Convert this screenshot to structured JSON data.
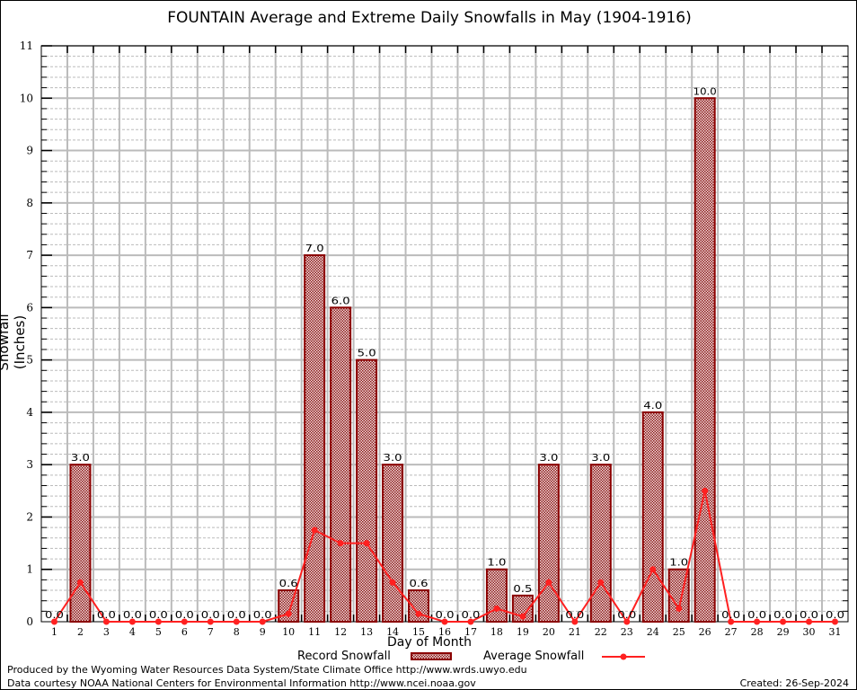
{
  "chart_data": {
    "type": "bar",
    "title": "FOUNTAIN Average and Extreme Daily Snowfalls in May (1904-1916)",
    "xlabel": "Day of Month",
    "ylabel": "Snowfall (Inches)",
    "ylim": [
      0,
      11
    ],
    "yticks": [
      "0",
      "1",
      "2",
      "3",
      "4",
      "5",
      "6",
      "7",
      "8",
      "9",
      "10",
      "11"
    ],
    "categories": [
      "1",
      "2",
      "3",
      "4",
      "5",
      "6",
      "7",
      "8",
      "9",
      "10",
      "11",
      "12",
      "13",
      "14",
      "15",
      "16",
      "17",
      "18",
      "19",
      "20",
      "21",
      "22",
      "23",
      "24",
      "25",
      "26",
      "27",
      "28",
      "29",
      "30",
      "31"
    ],
    "series": [
      {
        "name": "Record Snowfall",
        "type": "bar",
        "color": "#8b0000",
        "values": [
          0.0,
          3.0,
          0.0,
          0.0,
          0.0,
          0.0,
          0.0,
          0.0,
          0.0,
          0.6,
          7.0,
          6.0,
          5.0,
          3.0,
          0.6,
          0.0,
          0.0,
          1.0,
          0.5,
          3.0,
          0.0,
          3.0,
          0.0,
          4.0,
          1.0,
          10.0,
          0.0,
          0.0,
          0.0,
          0.0,
          0.0
        ],
        "labels": [
          "0.0",
          "3.0",
          "0.0",
          "0.0",
          "0.0",
          "0.0",
          "0.0",
          "0.0",
          "0.0",
          "0.6",
          "7.0",
          "6.0",
          "5.0",
          "3.0",
          "0.6",
          "0.0",
          "0.0",
          "1.0",
          "0.5",
          "3.0",
          "0.0",
          "3.0",
          "0.0",
          "4.0",
          "1.0",
          "10.0",
          "0.0",
          "0.0",
          "0.0",
          "0.0",
          "0.0"
        ]
      },
      {
        "name": "Average Snowfall",
        "type": "line",
        "color": "#ff2020",
        "values": [
          0,
          0.75,
          0,
          0,
          0,
          0,
          0,
          0,
          0,
          0.15,
          1.75,
          1.5,
          1.5,
          0.75,
          0.15,
          0,
          0,
          0.25,
          0.1,
          0.75,
          0,
          0.75,
          0,
          1.0,
          0.25,
          2.5,
          0,
          0,
          0,
          0,
          0
        ]
      }
    ],
    "grid": true,
    "legend": "bottom-center"
  },
  "footer": {
    "line1": "Produced by the Wyoming Water Resources Data System/State Climate Office http://www.wrds.uwyo.edu",
    "line2": "Data courtesy NOAA National Centers for Environmental Information http://www.ncei.noaa.gov",
    "created": "Created:  26-Sep-2024"
  }
}
